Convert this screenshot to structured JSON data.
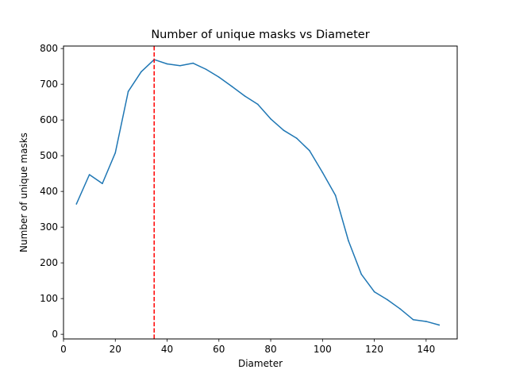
{
  "chart_data": {
    "type": "line",
    "title": "Number of unique masks vs Diameter",
    "xlabel": "Diameter",
    "ylabel": "Number of unique masks",
    "xlim": [
      0,
      152
    ],
    "ylim": [
      -13,
      807
    ],
    "xticks": [
      0,
      20,
      40,
      60,
      80,
      100,
      120,
      140
    ],
    "yticks": [
      0,
      100,
      200,
      300,
      400,
      500,
      600,
      700,
      800
    ],
    "grid": false,
    "legend": "none",
    "series": [
      {
        "color": "#1f77b4",
        "x": [
          5,
          10,
          15,
          20,
          25,
          30,
          35,
          40,
          45,
          50,
          55,
          60,
          65,
          70,
          75,
          80,
          85,
          90,
          95,
          100,
          105,
          110,
          115,
          120,
          125,
          130,
          135,
          140,
          145
        ],
        "y": [
          365,
          447,
          422,
          508,
          680,
          735,
          769,
          757,
          752,
          759,
          742,
          720,
          694,
          667,
          644,
          603,
          571,
          549,
          514,
          453,
          389,
          262,
          168,
          119,
          97,
          71,
          41,
          36,
          26
        ]
      }
    ],
    "annotations": [
      {
        "type": "vline",
        "x": 35,
        "color": "#ff0000",
        "style": "dashed"
      }
    ]
  }
}
